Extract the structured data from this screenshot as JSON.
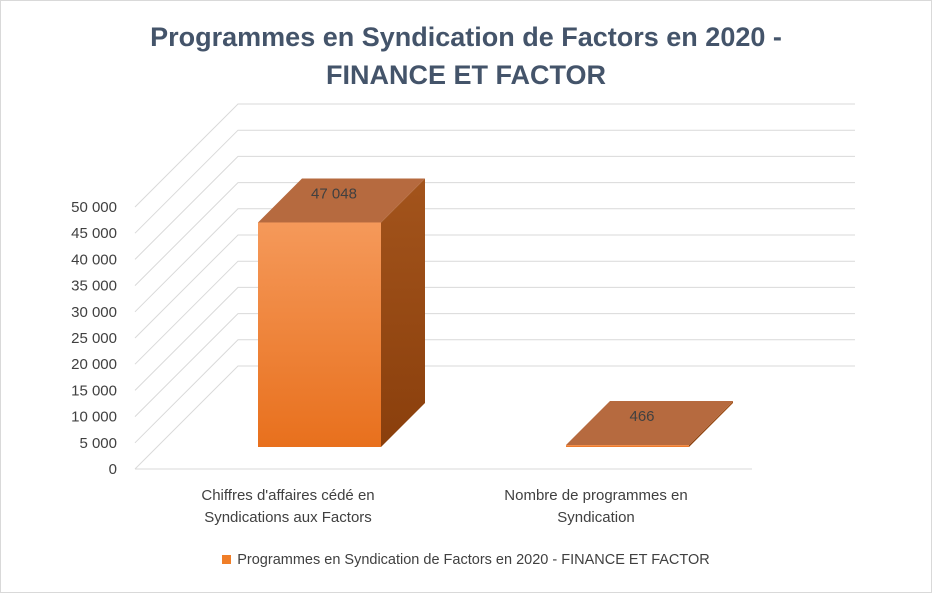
{
  "chart_data": {
    "type": "bar",
    "title_line1": "Programmes en Syndication de Factors en 2020 -",
    "title_line2": "FINANCE ET FACTOR",
    "categories": [
      [
        "Chiffres d'affaires cédé en",
        "Syndications aux Factors"
      ],
      [
        "Nombre de programmes en",
        "Syndication"
      ]
    ],
    "series": [
      {
        "name": "Programmes en Syndication de Factors en 2020 - FINANCE ET FACTOR",
        "values": [
          47048,
          466
        ],
        "labels": [
          "47 048",
          "466"
        ]
      }
    ],
    "ylim": [
      0,
      50000
    ],
    "yticks": [
      "0",
      "5 000",
      "10 000",
      "15 000",
      "20 000",
      "25 000",
      "30 000",
      "35 000",
      "40 000",
      "45 000",
      "50 000"
    ],
    "grid": true,
    "legend_position": "bottom",
    "colors": {
      "front_top": "#f5995a",
      "front_bottom": "#e8701d",
      "side": "#9a4a12",
      "top": "#b66a3f",
      "grid": "#d9d9d9",
      "legend_swatch": "#f07e28"
    }
  }
}
